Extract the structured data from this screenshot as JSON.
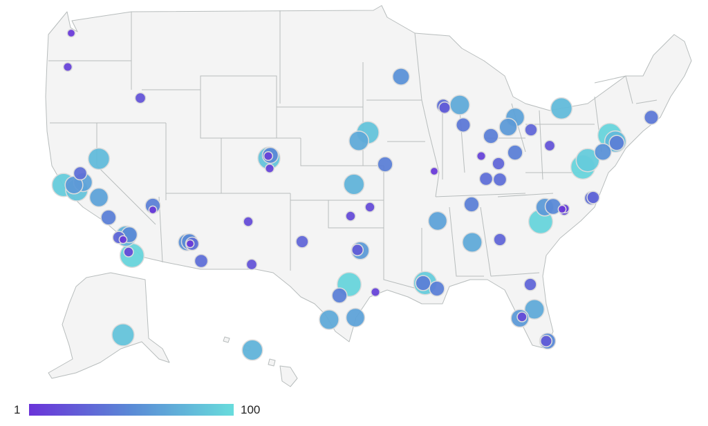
{
  "colors": {
    "state_fill": "#f4f4f4",
    "state_border": "#b7bcbc",
    "scale_low": "#6a33d8",
    "scale_mid": "#5a8ad6",
    "scale_high": "#68dcdc"
  },
  "legend": {
    "min_label": "1",
    "max_label": "100"
  },
  "chart_data": {
    "type": "bubble-map",
    "region": "United States",
    "value_scale": {
      "min": 1,
      "max": 100
    },
    "points": [
      {
        "v": 5
      },
      {
        "v": 10
      },
      {
        "v": 20
      },
      {
        "v": 55
      },
      {
        "v": 35
      },
      {
        "v": 70
      },
      {
        "v": 80
      },
      {
        "v": 40
      },
      {
        "v": 65
      },
      {
        "v": 25
      },
      {
        "v": 40
      },
      {
        "v": 60
      },
      {
        "v": 45
      },
      {
        "v": 30
      },
      {
        "v": 85
      },
      {
        "v": 70
      },
      {
        "v": 80
      },
      {
        "v": 50
      },
      {
        "v": 85
      },
      {
        "v": 95
      },
      {
        "v": 80
      },
      {
        "v": 10
      },
      {
        "v": 20
      },
      {
        "v": 45
      },
      {
        "v": 55
      },
      {
        "v": 10
      },
      {
        "v": 45
      },
      {
        "v": 30
      },
      {
        "v": 95
      },
      {
        "v": 90
      },
      {
        "v": 45
      },
      {
        "v": 35
      },
      {
        "v": 90
      },
      {
        "v": 60
      },
      {
        "v": 65
      },
      {
        "v": 85
      },
      {
        "v": 5
      },
      {
        "v": 10
      },
      {
        "v": 35
      },
      {
        "v": 75
      },
      {
        "v": 65
      },
      {
        "v": 35
      },
      {
        "v": 45
      },
      {
        "v": 45
      },
      {
        "v": 5
      },
      {
        "v": 60
      },
      {
        "v": 50
      },
      {
        "v": 15
      },
      {
        "v": 15
      },
      {
        "v": 15
      },
      {
        "v": 35
      },
      {
        "v": 95
      },
      {
        "v": 5
      },
      {
        "v": 10
      },
      {
        "v": 15
      },
      {
        "v": 65
      },
      {
        "v": 45
      },
      {
        "v": 30
      },
      {
        "v": 30
      },
      {
        "v": 75
      },
      {
        "v": 50
      },
      {
        "v": 30
      },
      {
        "v": 5
      },
      {
        "v": 15
      },
      {
        "v": 5
      },
      {
        "v": 55
      },
      {
        "v": 35
      },
      {
        "v": 50
      },
      {
        "v": 25
      },
      {
        "v": 60
      },
      {
        "v": 95
      },
      {
        "v": 35
      },
      {
        "v": 20
      },
      {
        "v": 45
      },
      {
        "v": 90
      },
      {
        "v": 45
      },
      {
        "v": 70
      },
      {
        "v": 30
      },
      {
        "v": 95
      },
      {
        "v": 45
      },
      {
        "v": 10
      },
      {
        "v": 70
      },
      {
        "v": 65
      },
      {
        "v": 30
      },
      {
        "v": 70
      },
      {
        "v": 60
      },
      {
        "v": 15
      },
      {
        "v": 50
      },
      {
        "v": 25
      },
      {
        "v": 85
      },
      {
        "v": 75
      },
      {
        "v": 60
      },
      {
        "v": 40
      },
      {
        "v": 15
      },
      {
        "v": 55
      },
      {
        "v": 60
      },
      {
        "v": 20
      },
      {
        "v": 80
      }
    ]
  }
}
